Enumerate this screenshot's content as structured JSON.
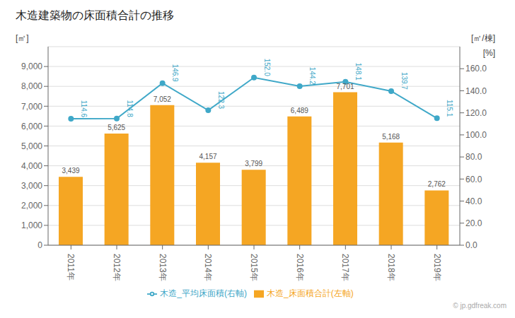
{
  "chart_data": {
    "type": "bar",
    "title": "木造建築物の床面積合計の推移",
    "categories": [
      "2011年",
      "2012年",
      "2013年",
      "2014年",
      "2015年",
      "2016年",
      "2017年",
      "2018年",
      "2019年"
    ],
    "series": [
      {
        "name": "木造_床面積合計(左軸)",
        "type": "bar",
        "color": "#f5a623",
        "values": [
          3439,
          5625,
          7052,
          4157,
          3799,
          6489,
          7701,
          5168,
          2762
        ],
        "value_labels": [
          "3,439",
          "5,625",
          "7,052",
          "4,157",
          "3,799",
          "6,489",
          "7,701",
          "5,168",
          "2,762"
        ]
      },
      {
        "name": "木造_平均床面積(右軸)",
        "type": "line",
        "color": "#3fa8c8",
        "axis": "y2",
        "marker": "circle",
        "values": [
          114.6,
          114.8,
          146.9,
          122.3,
          152.0,
          144.2,
          148.1,
          139.7,
          115.1
        ],
        "value_labels": [
          "114.6",
          "114.8",
          "146.9",
          "122.3",
          "152.0",
          "144.2",
          "148.1",
          "139.7",
          "115.1"
        ]
      }
    ],
    "ylabel": "[㎡]",
    "y2label": "[㎡/棟]",
    "annotations": [
      "[%]",
      "© jp.gdfreak.com"
    ],
    "ylim": [
      0,
      10000
    ],
    "yticks": [
      0,
      {
        "value": 1000,
        "label": "1,000"
      },
      {
        "value": 2000,
        "label": "2,000"
      },
      {
        "value": 3000,
        "label": "3,000"
      },
      {
        "value": 4000,
        "label": "4,000"
      },
      {
        "value": 5000,
        "label": "5,000"
      },
      {
        "value": 6000,
        "label": "6,000"
      },
      {
        "value": 7000,
        "label": "7,000"
      },
      {
        "value": 8000,
        "label": "8,000"
      },
      {
        "value": 9000,
        "label": "9,000"
      }
    ],
    "y2lim": [
      0,
      180
    ],
    "y2ticks": [
      {
        "value": 0,
        "label": "0.0"
      },
      {
        "value": 20,
        "label": "20.0"
      },
      {
        "value": 40,
        "label": "40.0"
      },
      {
        "value": 60,
        "label": "60.0"
      },
      {
        "value": 80,
        "label": "80.0"
      },
      {
        "value": 100,
        "label": "100.0"
      },
      {
        "value": 120,
        "label": "120.0"
      },
      {
        "value": 140,
        "label": "140.0"
      },
      {
        "value": 160,
        "label": "160.0"
      }
    ],
    "grid": true,
    "legend": "bottom",
    "data_labels": true
  }
}
